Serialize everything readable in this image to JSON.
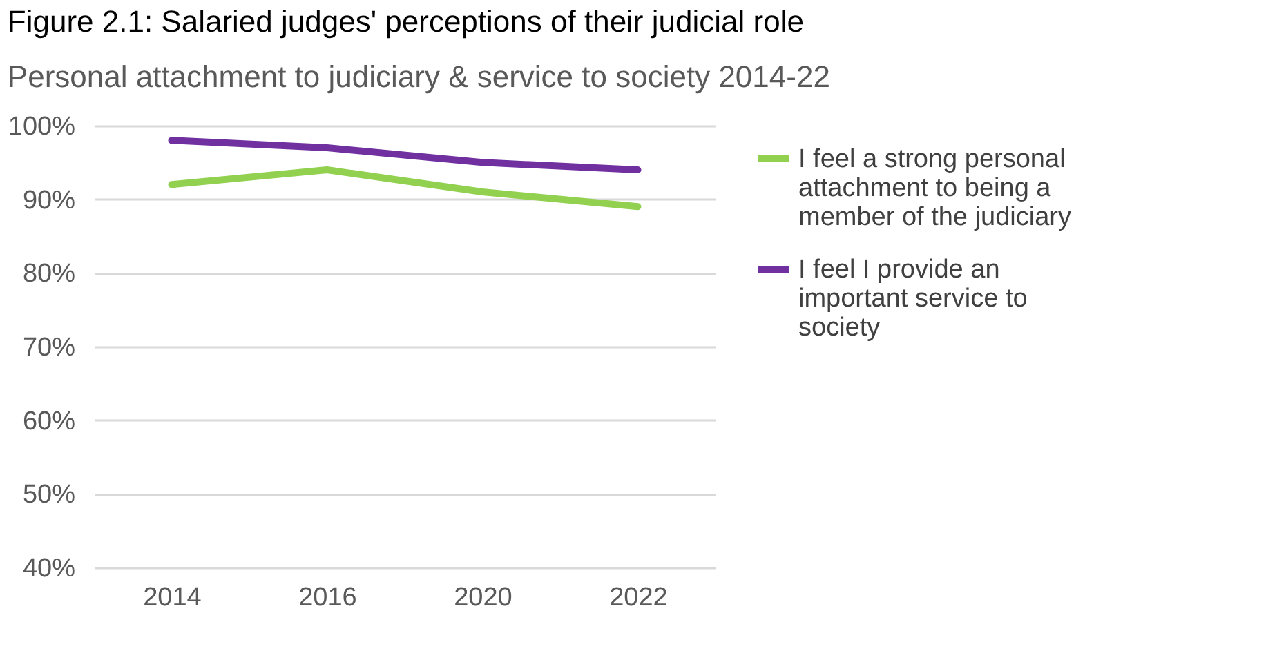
{
  "chart_data": {
    "type": "line",
    "title": "Figure 2.1: Salaried judges' perceptions of their judicial role",
    "subtitle": "Personal attachment to judiciary & service to society 2014-22",
    "categories": [
      "2014",
      "2016",
      "2020",
      "2022"
    ],
    "series": [
      {
        "name": "I feel a strong personal attachment to being a member of the judiciary",
        "color": "#92d050",
        "values": [
          92,
          94,
          91,
          89
        ]
      },
      {
        "name": "I feel I provide an important service to society",
        "color": "#7030a0",
        "values": [
          98,
          97,
          95,
          94
        ]
      }
    ],
    "ylim": [
      40,
      100
    ],
    "yticks": [
      {
        "value": 40,
        "label": "40%"
      },
      {
        "value": 50,
        "label": "50%"
      },
      {
        "value": 60,
        "label": "60%"
      },
      {
        "value": 70,
        "label": "70%"
      },
      {
        "value": 80,
        "label": "80%"
      },
      {
        "value": 90,
        "label": "90%"
      },
      {
        "value": 100,
        "label": "100%"
      }
    ],
    "grid": "y",
    "legend": "right",
    "marker": "none",
    "line_style": "solid"
  }
}
